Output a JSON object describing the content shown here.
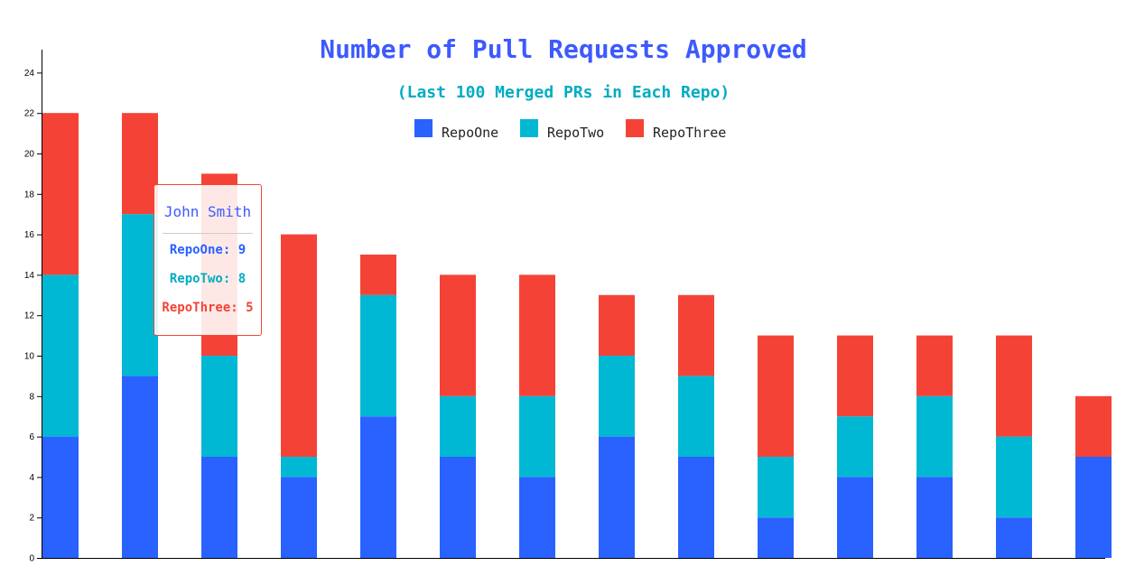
{
  "colors": {
    "repo_one": "#2962ff",
    "repo_two": "#00b8d4",
    "repo_three": "#f44336",
    "title": "#3d5afe",
    "subtitle": "#00acc1"
  },
  "chart_data": {
    "type": "bar",
    "stacked": true,
    "title": "Number of Pull Requests Approved",
    "subtitle": "(Last 100 Merged PRs in Each Repo)",
    "xlabel": "",
    "ylabel": "",
    "ylim": [
      0,
      25
    ],
    "yticks": [
      0,
      2,
      4,
      6,
      8,
      10,
      12,
      14,
      16,
      18,
      20,
      22,
      24
    ],
    "legend_position": "top-center",
    "series": [
      {
        "name": "RepoOne",
        "values": [
          6,
          9,
          5,
          4,
          7,
          5,
          4,
          6,
          5,
          2,
          4,
          4,
          2,
          5
        ]
      },
      {
        "name": "RepoTwo",
        "values": [
          8,
          8,
          5,
          1,
          6,
          3,
          4,
          4,
          4,
          3,
          3,
          4,
          4,
          0
        ]
      },
      {
        "name": "RepoThree",
        "values": [
          8,
          5,
          9,
          11,
          2,
          6,
          6,
          3,
          4,
          6,
          4,
          3,
          5,
          3
        ]
      }
    ]
  },
  "tooltip": {
    "name": "John Smith",
    "rows": [
      {
        "label": "RepoOne: 9"
      },
      {
        "label": "RepoTwo: 8"
      },
      {
        "label": "RepoThree: 5"
      }
    ]
  }
}
